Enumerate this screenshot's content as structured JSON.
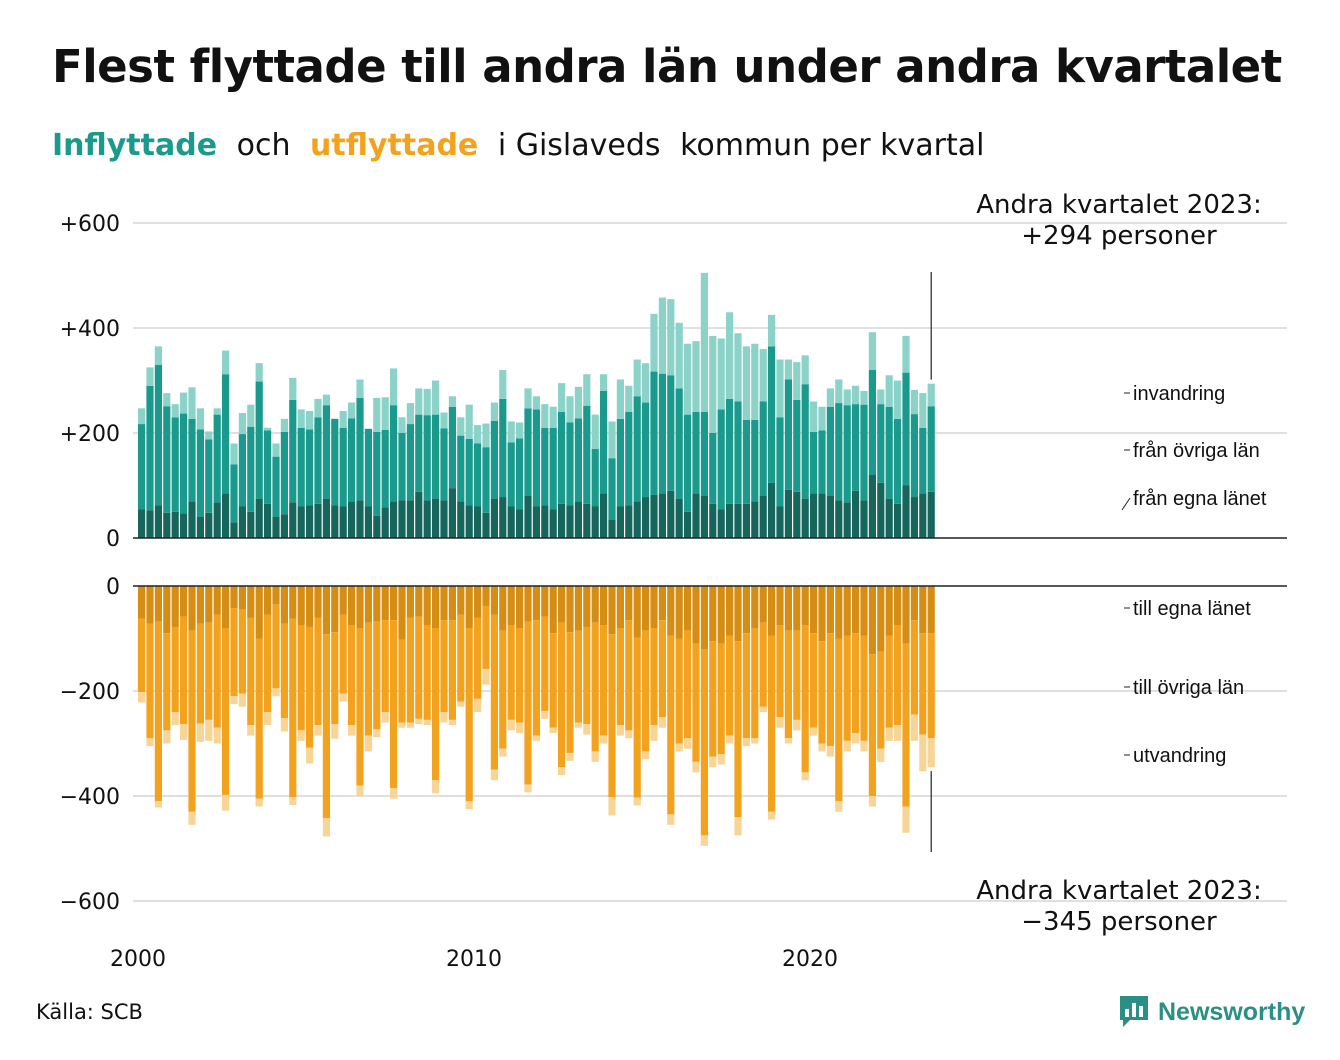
{
  "title": "Flest flyttade till andra län under andra kvartalet",
  "subtitle": {
    "part1": "Inflyttade",
    "part2": "och",
    "part3": "utflyttade",
    "part4": "i Gislaveds",
    "part5": "kommun per kvartal"
  },
  "annotations": {
    "top_line1": "Andra kvartalet 2023:",
    "top_line2": "+294 personer",
    "bottom_line1": "Andra kvartalet 2023:",
    "bottom_line2": "−345 personer"
  },
  "source": "Källa: SCB",
  "brand": "Newsworthy",
  "colors": {
    "in_egna": "#17665e",
    "in_ovriga": "#1a9a8c",
    "in_invandring": "#8bd3c9",
    "ut_egna": "#d58d13",
    "ut_ovriga": "#f3a21d",
    "ut_utvandring": "#f7d596",
    "grid": "#e0e0e0"
  },
  "chart_data": {
    "type": "bar",
    "stacked": true,
    "x_axis": {
      "ticks": [
        "2000",
        "2010",
        "2020"
      ],
      "start": "2000 kv1",
      "end": "2023 kv2"
    },
    "inflow_panel": {
      "ylim": [
        0,
        600
      ],
      "yticks": [
        "+600",
        "+400",
        "+200",
        "0"
      ],
      "series_labels": [
        "invandring",
        "från övriga län",
        "från egna länet"
      ]
    },
    "outflow_panel": {
      "ylim": [
        -600,
        0
      ],
      "yticks": [
        "0",
        "−200",
        "−400",
        "−600"
      ],
      "series_labels": [
        "till egna länet",
        "till övriga län",
        "utvandring"
      ]
    },
    "quarters": [
      {
        "in_egna": 55,
        "in_ovriga": 162,
        "in_inv": 30,
        "ut_egna": 62,
        "ut_ovriga": 140,
        "ut_utv": 20
      },
      {
        "in_egna": 53,
        "in_ovriga": 237,
        "in_inv": 35,
        "ut_egna": 72,
        "ut_ovriga": 218,
        "ut_utv": 15
      },
      {
        "in_egna": 62,
        "in_ovriga": 268,
        "in_inv": 35,
        "ut_egna": 68,
        "ut_ovriga": 342,
        "ut_utv": 12
      },
      {
        "in_egna": 48,
        "in_ovriga": 203,
        "in_inv": 25,
        "ut_egna": 90,
        "ut_ovriga": 185,
        "ut_utv": 25
      },
      {
        "in_egna": 50,
        "in_ovriga": 180,
        "in_inv": 25,
        "ut_egna": 78,
        "ut_ovriga": 162,
        "ut_utv": 25
      },
      {
        "in_egna": 47,
        "in_ovriga": 190,
        "in_inv": 40,
        "ut_egna": 58,
        "ut_ovriga": 205,
        "ut_utv": 30
      },
      {
        "in_egna": 70,
        "in_ovriga": 157,
        "in_inv": 60,
        "ut_egna": 85,
        "ut_ovriga": 345,
        "ut_utv": 25
      },
      {
        "in_egna": 40,
        "in_ovriga": 167,
        "in_inv": 40,
        "ut_egna": 72,
        "ut_ovriga": 190,
        "ut_utv": 35
      },
      {
        "in_egna": 48,
        "in_ovriga": 140,
        "in_inv": 15,
        "ut_egna": 70,
        "ut_ovriga": 185,
        "ut_utv": 40
      },
      {
        "in_egna": 68,
        "in_ovriga": 167,
        "in_inv": 12,
        "ut_egna": 55,
        "ut_ovriga": 215,
        "ut_utv": 30
      },
      {
        "in_egna": 85,
        "in_ovriga": 227,
        "in_inv": 45,
        "ut_egna": 80,
        "ut_ovriga": 318,
        "ut_utv": 30
      },
      {
        "in_egna": 30,
        "in_ovriga": 110,
        "in_inv": 40,
        "ut_egna": 42,
        "ut_ovriga": 168,
        "ut_utv": 15
      },
      {
        "in_egna": 60,
        "in_ovriga": 138,
        "in_inv": 40,
        "ut_egna": 45,
        "ut_ovriga": 160,
        "ut_utv": 25
      },
      {
        "in_egna": 50,
        "in_ovriga": 162,
        "in_inv": 42,
        "ut_egna": 60,
        "ut_ovriga": 205,
        "ut_utv": 20
      },
      {
        "in_egna": 75,
        "in_ovriga": 223,
        "in_inv": 35,
        "ut_egna": 100,
        "ut_ovriga": 305,
        "ut_utv": 15
      },
      {
        "in_egna": 65,
        "in_ovriga": 140,
        "in_inv": 5,
        "ut_egna": 55,
        "ut_ovriga": 185,
        "ut_utv": 25
      },
      {
        "in_egna": 40,
        "in_ovriga": 115,
        "in_inv": 25,
        "ut_egna": 35,
        "ut_ovriga": 160,
        "ut_utv": 15
      },
      {
        "in_egna": 45,
        "in_ovriga": 157,
        "in_inv": 25,
        "ut_egna": 72,
        "ut_ovriga": 180,
        "ut_utv": 25
      },
      {
        "in_egna": 68,
        "in_ovriga": 195,
        "in_inv": 42,
        "ut_egna": 62,
        "ut_ovriga": 340,
        "ut_utv": 15
      },
      {
        "in_egna": 60,
        "in_ovriga": 150,
        "in_inv": 35,
        "ut_egna": 75,
        "ut_ovriga": 200,
        "ut_utv": 20
      },
      {
        "in_egna": 62,
        "in_ovriga": 145,
        "in_inv": 35,
        "ut_egna": 78,
        "ut_ovriga": 230,
        "ut_utv": 30
      },
      {
        "in_egna": 65,
        "in_ovriga": 165,
        "in_inv": 35,
        "ut_egna": 60,
        "ut_ovriga": 205,
        "ut_utv": 20
      },
      {
        "in_egna": 75,
        "in_ovriga": 178,
        "in_inv": 20,
        "ut_egna": 92,
        "ut_ovriga": 350,
        "ut_utv": 35
      },
      {
        "in_egna": 62,
        "in_ovriga": 165,
        "in_inv": 0,
        "ut_egna": 88,
        "ut_ovriga": 175,
        "ut_utv": 28
      },
      {
        "in_egna": 60,
        "in_ovriga": 150,
        "in_inv": 32,
        "ut_egna": 55,
        "ut_ovriga": 150,
        "ut_utv": 15
      },
      {
        "in_egna": 70,
        "in_ovriga": 158,
        "in_inv": 30,
        "ut_egna": 75,
        "ut_ovriga": 190,
        "ut_utv": 20
      },
      {
        "in_egna": 72,
        "in_ovriga": 195,
        "in_inv": 35,
        "ut_egna": 80,
        "ut_ovriga": 300,
        "ut_utv": 20
      },
      {
        "in_egna": 60,
        "in_ovriga": 148,
        "in_inv": 0,
        "ut_egna": 70,
        "ut_ovriga": 215,
        "ut_utv": 30
      },
      {
        "in_egna": 42,
        "in_ovriga": 160,
        "in_inv": 65,
        "ut_egna": 68,
        "ut_ovriga": 205,
        "ut_utv": 15
      },
      {
        "in_egna": 58,
        "in_ovriga": 148,
        "in_inv": 62,
        "ut_egna": 65,
        "ut_ovriga": 175,
        "ut_utv": 20
      },
      {
        "in_egna": 70,
        "in_ovriga": 183,
        "in_inv": 70,
        "ut_egna": 65,
        "ut_ovriga": 320,
        "ut_utv": 20
      },
      {
        "in_egna": 72,
        "in_ovriga": 128,
        "in_inv": 30,
        "ut_egna": 102,
        "ut_ovriga": 158,
        "ut_utv": 10
      },
      {
        "in_egna": 72,
        "in_ovriga": 145,
        "in_inv": 40,
        "ut_egna": 60,
        "ut_ovriga": 200,
        "ut_utv": 10
      },
      {
        "in_egna": 88,
        "in_ovriga": 147,
        "in_inv": 50,
        "ut_egna": 58,
        "ut_ovriga": 195,
        "ut_utv": 10
      },
      {
        "in_egna": 72,
        "in_ovriga": 162,
        "in_inv": 50,
        "ut_egna": 75,
        "ut_ovriga": 180,
        "ut_utv": 10
      },
      {
        "in_egna": 75,
        "in_ovriga": 160,
        "in_inv": 65,
        "ut_egna": 80,
        "ut_ovriga": 290,
        "ut_utv": 25
      },
      {
        "in_egna": 72,
        "in_ovriga": 137,
        "in_inv": 30,
        "ut_egna": 65,
        "ut_ovriga": 175,
        "ut_utv": 20
      },
      {
        "in_egna": 95,
        "in_ovriga": 155,
        "in_inv": 20,
        "ut_egna": 65,
        "ut_ovriga": 190,
        "ut_utv": 10
      },
      {
        "in_egna": 70,
        "in_ovriga": 125,
        "in_inv": 35,
        "ut_egna": 55,
        "ut_ovriga": 165,
        "ut_utv": 10
      },
      {
        "in_egna": 62,
        "in_ovriga": 127,
        "in_inv": 65,
        "ut_egna": 80,
        "ut_ovriga": 330,
        "ut_utv": 15
      },
      {
        "in_egna": 60,
        "in_ovriga": 120,
        "in_inv": 35,
        "ut_egna": 60,
        "ut_ovriga": 155,
        "ut_utv": 25
      },
      {
        "in_egna": 48,
        "in_ovriga": 125,
        "in_inv": 45,
        "ut_egna": 38,
        "ut_ovriga": 120,
        "ut_utv": 30
      },
      {
        "in_egna": 75,
        "in_ovriga": 148,
        "in_inv": 35,
        "ut_egna": 55,
        "ut_ovriga": 295,
        "ut_utv": 20
      },
      {
        "in_egna": 78,
        "in_ovriga": 187,
        "in_inv": 55,
        "ut_egna": 85,
        "ut_ovriga": 225,
        "ut_utv": 15
      },
      {
        "in_egna": 60,
        "in_ovriga": 122,
        "in_inv": 40,
        "ut_egna": 75,
        "ut_ovriga": 180,
        "ut_utv": 20
      },
      {
        "in_egna": 55,
        "in_ovriga": 135,
        "in_inv": 30,
        "ut_egna": 80,
        "ut_ovriga": 180,
        "ut_utv": 20
      },
      {
        "in_egna": 80,
        "in_ovriga": 167,
        "in_inv": 38,
        "ut_egna": 68,
        "ut_ovriga": 310,
        "ut_utv": 15
      },
      {
        "in_egna": 60,
        "in_ovriga": 185,
        "in_inv": 25,
        "ut_egna": 65,
        "ut_ovriga": 220,
        "ut_utv": 10
      },
      {
        "in_egna": 62,
        "in_ovriga": 148,
        "in_inv": 45,
        "ut_egna": 58,
        "ut_ovriga": 180,
        "ut_utv": 15
      },
      {
        "in_egna": 55,
        "in_ovriga": 155,
        "in_inv": 40,
        "ut_egna": 90,
        "ut_ovriga": 180,
        "ut_utv": 10
      },
      {
        "in_egna": 65,
        "in_ovriga": 175,
        "in_inv": 55,
        "ut_egna": 70,
        "ut_ovriga": 275,
        "ut_utv": 15
      },
      {
        "in_egna": 62,
        "in_ovriga": 158,
        "in_inv": 50,
        "ut_egna": 88,
        "ut_ovriga": 230,
        "ut_utv": 15
      },
      {
        "in_egna": 70,
        "in_ovriga": 158,
        "in_inv": 60,
        "ut_egna": 85,
        "ut_ovriga": 175,
        "ut_utv": 10
      },
      {
        "in_egna": 65,
        "in_ovriga": 187,
        "in_inv": 60,
        "ut_egna": 78,
        "ut_ovriga": 185,
        "ut_utv": 20
      },
      {
        "in_egna": 60,
        "in_ovriga": 110,
        "in_inv": 65,
        "ut_egna": 70,
        "ut_ovriga": 245,
        "ut_utv": 20
      },
      {
        "in_egna": 85,
        "in_ovriga": 195,
        "in_inv": 32,
        "ut_egna": 75,
        "ut_ovriga": 210,
        "ut_utv": 15
      },
      {
        "in_egna": 35,
        "in_ovriga": 117,
        "in_inv": 70,
        "ut_egna": 92,
        "ut_ovriga": 310,
        "ut_utv": 35
      },
      {
        "in_egna": 60,
        "in_ovriga": 167,
        "in_inv": 75,
        "ut_egna": 80,
        "ut_ovriga": 185,
        "ut_utv": 20
      },
      {
        "in_egna": 62,
        "in_ovriga": 178,
        "in_inv": 50,
        "ut_egna": 65,
        "ut_ovriga": 210,
        "ut_utv": 15
      },
      {
        "in_egna": 70,
        "in_ovriga": 200,
        "in_inv": 70,
        "ut_egna": 98,
        "ut_ovriga": 305,
        "ut_utv": 15
      },
      {
        "in_egna": 78,
        "in_ovriga": 180,
        "in_inv": 75,
        "ut_egna": 85,
        "ut_ovriga": 230,
        "ut_utv": 15
      },
      {
        "in_egna": 82,
        "in_ovriga": 235,
        "in_inv": 110,
        "ut_egna": 80,
        "ut_ovriga": 185,
        "ut_utv": 30
      },
      {
        "in_egna": 85,
        "in_ovriga": 228,
        "in_inv": 145,
        "ut_egna": 65,
        "ut_ovriga": 185,
        "ut_utv": 20
      },
      {
        "in_egna": 90,
        "in_ovriga": 220,
        "in_inv": 145,
        "ut_egna": 95,
        "ut_ovriga": 340,
        "ut_utv": 20
      },
      {
        "in_egna": 75,
        "in_ovriga": 210,
        "in_inv": 125,
        "ut_egna": 100,
        "ut_ovriga": 200,
        "ut_utv": 15
      },
      {
        "in_egna": 50,
        "in_ovriga": 185,
        "in_inv": 135,
        "ut_egna": 85,
        "ut_ovriga": 205,
        "ut_utv": 20
      },
      {
        "in_egna": 85,
        "in_ovriga": 155,
        "in_inv": 135,
        "ut_egna": 110,
        "ut_ovriga": 225,
        "ut_utv": 20
      },
      {
        "in_egna": 80,
        "in_ovriga": 160,
        "in_inv": 265,
        "ut_egna": 120,
        "ut_ovriga": 355,
        "ut_utv": 20
      },
      {
        "in_egna": 65,
        "in_ovriga": 135,
        "in_inv": 185,
        "ut_egna": 105,
        "ut_ovriga": 220,
        "ut_utv": 20
      },
      {
        "in_egna": 55,
        "in_ovriga": 190,
        "in_inv": 135,
        "ut_egna": 110,
        "ut_ovriga": 210,
        "ut_utv": 20
      },
      {
        "in_egna": 65,
        "in_ovriga": 200,
        "in_inv": 165,
        "ut_egna": 95,
        "ut_ovriga": 190,
        "ut_utv": 15
      },
      {
        "in_egna": 65,
        "in_ovriga": 195,
        "in_inv": 130,
        "ut_egna": 105,
        "ut_ovriga": 335,
        "ut_utv": 35
      },
      {
        "in_egna": 65,
        "in_ovriga": 160,
        "in_inv": 140,
        "ut_egna": 90,
        "ut_ovriga": 200,
        "ut_utv": 15
      },
      {
        "in_egna": 70,
        "in_ovriga": 155,
        "in_inv": 145,
        "ut_egna": 80,
        "ut_ovriga": 210,
        "ut_utv": 10
      },
      {
        "in_egna": 80,
        "in_ovriga": 180,
        "in_inv": 100,
        "ut_egna": 70,
        "ut_ovriga": 160,
        "ut_utv": 10
      },
      {
        "in_egna": 105,
        "in_ovriga": 260,
        "in_inv": 60,
        "ut_egna": 95,
        "ut_ovriga": 335,
        "ut_utv": 15
      },
      {
        "in_egna": 60,
        "in_ovriga": 170,
        "in_inv": 110,
        "ut_egna": 75,
        "ut_ovriga": 175,
        "ut_utv": 20
      },
      {
        "in_egna": 92,
        "in_ovriga": 210,
        "in_inv": 38,
        "ut_egna": 85,
        "ut_ovriga": 205,
        "ut_utv": 10
      },
      {
        "in_egna": 88,
        "in_ovriga": 175,
        "in_inv": 72,
        "ut_egna": 85,
        "ut_ovriga": 170,
        "ut_utv": 20
      },
      {
        "in_egna": 75,
        "in_ovriga": 218,
        "in_inv": 55,
        "ut_egna": 75,
        "ut_ovriga": 280,
        "ut_utv": 15
      },
      {
        "in_egna": 85,
        "in_ovriga": 117,
        "in_inv": 58,
        "ut_egna": 90,
        "ut_ovriga": 180,
        "ut_utv": 15
      },
      {
        "in_egna": 85,
        "in_ovriga": 120,
        "in_inv": 45,
        "ut_egna": 105,
        "ut_ovriga": 195,
        "ut_utv": 15
      },
      {
        "in_egna": 80,
        "in_ovriga": 170,
        "in_inv": 35,
        "ut_egna": 90,
        "ut_ovriga": 215,
        "ut_utv": 20
      },
      {
        "in_egna": 72,
        "in_ovriga": 185,
        "in_inv": 45,
        "ut_egna": 100,
        "ut_ovriga": 310,
        "ut_utv": 20
      },
      {
        "in_egna": 68,
        "in_ovriga": 185,
        "in_inv": 30,
        "ut_egna": 95,
        "ut_ovriga": 200,
        "ut_utv": 20
      },
      {
        "in_egna": 90,
        "in_ovriga": 165,
        "in_inv": 35,
        "ut_egna": 90,
        "ut_ovriga": 190,
        "ut_utv": 20
      },
      {
        "in_egna": 72,
        "in_ovriga": 182,
        "in_inv": 26,
        "ut_egna": 95,
        "ut_ovriga": 200,
        "ut_utv": 20
      },
      {
        "in_egna": 120,
        "in_ovriga": 200,
        "in_inv": 72,
        "ut_egna": 130,
        "ut_ovriga": 270,
        "ut_utv": 20
      },
      {
        "in_egna": 105,
        "in_ovriga": 150,
        "in_inv": 28,
        "ut_egna": 125,
        "ut_ovriga": 185,
        "ut_utv": 25
      },
      {
        "in_egna": 75,
        "in_ovriga": 175,
        "in_inv": 60,
        "ut_egna": 95,
        "ut_ovriga": 175,
        "ut_utv": 25
      },
      {
        "in_egna": 65,
        "in_ovriga": 162,
        "in_inv": 73,
        "ut_egna": 75,
        "ut_ovriga": 190,
        "ut_utv": 30
      },
      {
        "in_egna": 100,
        "in_ovriga": 215,
        "in_inv": 70,
        "ut_egna": 110,
        "ut_ovriga": 310,
        "ut_utv": 50
      },
      {
        "in_egna": 78,
        "in_ovriga": 158,
        "in_inv": 46,
        "ut_egna": 65,
        "ut_ovriga": 180,
        "ut_utv": 50
      },
      {
        "in_egna": 85,
        "in_ovriga": 125,
        "in_inv": 66,
        "ut_egna": 90,
        "ut_ovriga": 193,
        "ut_utv": 70
      },
      {
        "in_egna": 88,
        "in_ovriga": 163,
        "in_inv": 43,
        "ut_egna": 90,
        "ut_ovriga": 200,
        "ut_utv": 55
      }
    ]
  }
}
